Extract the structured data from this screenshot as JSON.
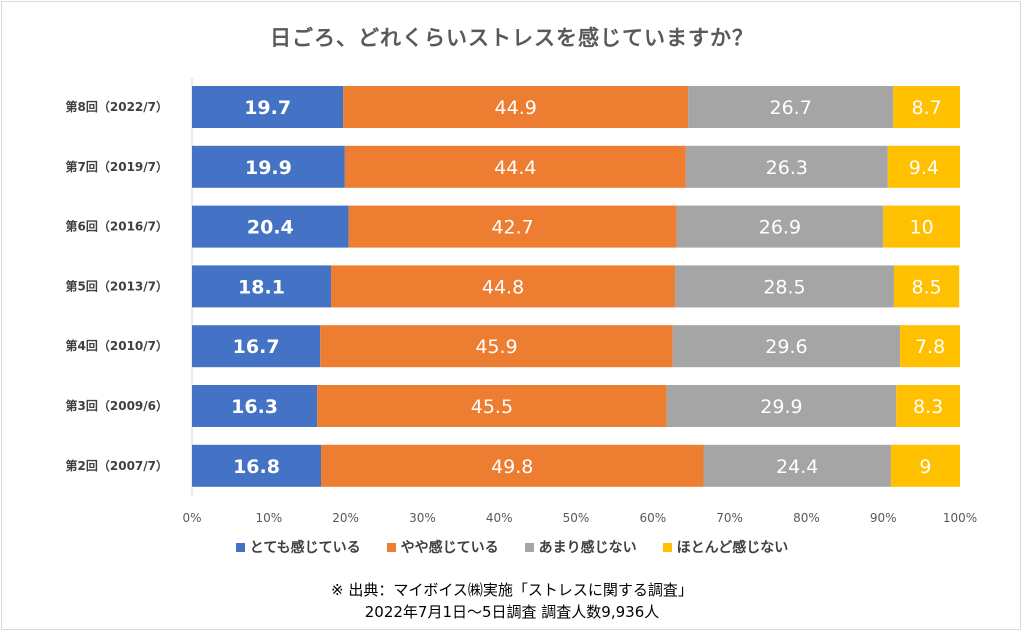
{
  "chart_data": {
    "type": "bar",
    "orientation": "horizontal",
    "stacked": true,
    "title": "日ごろ、どれくらいストレスを感じていますか？",
    "categories": [
      "第8回（2022/7）",
      "第7回（2019/7）",
      "第6回（2016/7）",
      "第5回（2013/7）",
      "第4回（2010/7）",
      "第3回（2009/6）",
      "第2回（2007/7）"
    ],
    "series": [
      {
        "name": "とても感じている",
        "color": "#4472c4",
        "values": [
          19.7,
          19.9,
          20.4,
          18.1,
          16.7,
          16.3,
          16.8
        ],
        "labels": [
          "19.7",
          "19.9",
          "20.4",
          "18.1",
          "16.7",
          "16.3",
          "16.8"
        ]
      },
      {
        "name": "やや感じている",
        "color": "#ed7d31",
        "values": [
          44.9,
          44.4,
          42.7,
          44.8,
          45.9,
          45.5,
          49.8
        ],
        "labels": [
          "44.9",
          "44.4",
          "42.7",
          "44.8",
          "45.9",
          "45.5",
          "49.8"
        ]
      },
      {
        "name": "あまり感じない",
        "color": "#a5a5a5",
        "values": [
          26.7,
          26.3,
          26.9,
          28.5,
          29.6,
          29.9,
          24.4
        ],
        "labels": [
          "26.7",
          "26.3",
          "26.9",
          "28.5",
          "29.6",
          "29.9",
          "24.4"
        ]
      },
      {
        "name": "ほとんど感じない",
        "color": "#ffc000",
        "values": [
          8.7,
          9.4,
          10,
          8.5,
          7.8,
          8.3,
          9
        ],
        "labels": [
          "8.7",
          "9.4",
          "10",
          "8.5",
          "7.8",
          "8.3",
          "9"
        ]
      }
    ],
    "xlim": [
      0,
      100
    ],
    "xticks": [
      "0%",
      "10%",
      "20%",
      "30%",
      "40%",
      "50%",
      "60%",
      "70%",
      "80%",
      "90%",
      "100%"
    ],
    "legend_position": "bottom",
    "grid": false
  },
  "source": {
    "line1": "※ 出典：マイボイス㈱実施「ストレスに関する調査」",
    "line2": "2022年7月1日～5日調査 調査人数9,936人"
  }
}
